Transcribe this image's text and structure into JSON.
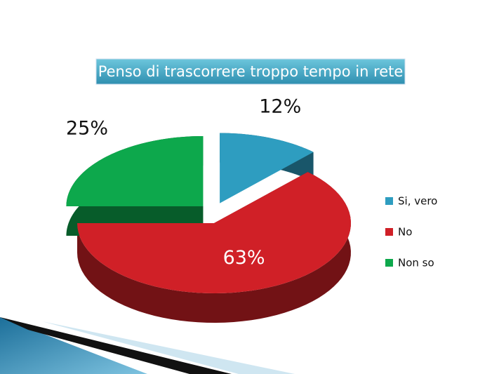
{
  "chart_data": {
    "type": "pie",
    "title": "Penso di trascorrere troppo tempo in rete",
    "categories": [
      "Si, vero",
      "No",
      "Non so"
    ],
    "values": [
      12,
      63,
      25
    ],
    "value_labels": [
      "12%",
      "63%",
      "25%"
    ],
    "colors": [
      "#2e9dc0",
      "#d02027",
      "#0da84c"
    ],
    "legend": "right"
  }
}
